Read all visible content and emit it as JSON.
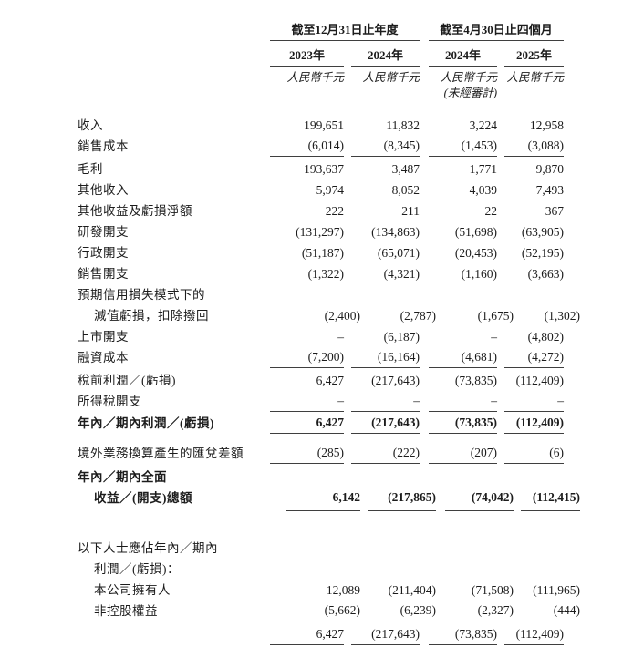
{
  "page": {
    "background": "#ffffff",
    "text_color": "#1c1c1c",
    "rule_color": "#3f3f3f"
  },
  "header": {
    "group1": {
      "title": "截至12月31日止年度",
      "columns": [
        "2023年",
        "2024年"
      ]
    },
    "group2": {
      "title": "截至4月30日止四個月",
      "columns": [
        "2024年",
        "2025年"
      ]
    },
    "unit_label": "人民幣千元",
    "unaudited_note": "(未經審計)"
  },
  "rows": [
    {
      "name": "revenue",
      "label": "收入",
      "indent": 0,
      "bold": false,
      "rule": "none",
      "gap": 0,
      "values": [
        "199,651",
        "11,832",
        "3,224",
        "12,958"
      ]
    },
    {
      "name": "cost-of-sales",
      "label": "銷售成本",
      "indent": 0,
      "bold": false,
      "rule": "single",
      "gap": 0,
      "values": [
        "(6,014)",
        "(8,345)",
        "(1,453)",
        "(3,088)"
      ]
    },
    {
      "name": "gross-profit",
      "label": "毛利",
      "indent": 0,
      "bold": false,
      "rule": "none",
      "gap": 2,
      "values": [
        "193,637",
        "3,487",
        "1,771",
        "9,870"
      ]
    },
    {
      "name": "other-income",
      "label": "其他收入",
      "indent": 0,
      "bold": false,
      "rule": "none",
      "gap": 0,
      "values": [
        "5,974",
        "8,052",
        "4,039",
        "7,493"
      ]
    },
    {
      "name": "other-gains-and-losses-net",
      "label": "其他收益及虧損淨額",
      "indent": 0,
      "bold": false,
      "rule": "none",
      "gap": 0,
      "values": [
        "222",
        "211",
        "22",
        "367"
      ]
    },
    {
      "name": "rd-expenses",
      "label": "研發開支",
      "indent": 0,
      "bold": false,
      "rule": "none",
      "gap": 0,
      "values": [
        "(131,297)",
        "(134,863)",
        "(51,698)",
        "(63,905)"
      ]
    },
    {
      "name": "admin-expenses",
      "label": "行政開支",
      "indent": 0,
      "bold": false,
      "rule": "none",
      "gap": 0,
      "values": [
        "(51,187)",
        "(65,071)",
        "(20,453)",
        "(52,195)"
      ]
    },
    {
      "name": "selling-expenses",
      "label": "銷售開支",
      "indent": 0,
      "bold": false,
      "rule": "none",
      "gap": 0,
      "values": [
        "(1,322)",
        "(4,321)",
        "(1,160)",
        "(3,663)"
      ]
    },
    {
      "name": "ecl-heading",
      "label": "預期信用損失模式下的",
      "indent": 0,
      "bold": false,
      "rule": "none",
      "gap": 0,
      "values": [
        "",
        "",
        "",
        ""
      ]
    },
    {
      "name": "impairment-losses-net-of-reversal",
      "label": "減值虧損，扣除撥回",
      "indent": 1,
      "bold": false,
      "rule": "none",
      "gap": 0,
      "values": [
        "(2,400)",
        "(2,787)",
        "(1,675)",
        "(1,302)"
      ]
    },
    {
      "name": "listing-expenses",
      "label": "上市開支",
      "indent": 0,
      "bold": false,
      "rule": "none",
      "gap": 0,
      "values": [
        "–",
        "(6,187)",
        "–",
        "(4,802)"
      ]
    },
    {
      "name": "finance-costs",
      "label": "融資成本",
      "indent": 0,
      "bold": false,
      "rule": "single",
      "gap": 0,
      "values": [
        "(7,200)",
        "(16,164)",
        "(4,681)",
        "(4,272)"
      ]
    },
    {
      "name": "profit-before-tax",
      "label": "稅前利潤／(虧損)",
      "indent": 0,
      "bold": false,
      "rule": "none",
      "gap": 2,
      "values": [
        "6,427",
        "(217,643)",
        "(73,835)",
        "(112,409)"
      ]
    },
    {
      "name": "income-tax-expense",
      "label": "所得稅開支",
      "indent": 0,
      "bold": false,
      "rule": "single",
      "gap": 0,
      "values": [
        "–",
        "–",
        "–",
        "–"
      ]
    },
    {
      "name": "profit-for-the-year",
      "label": "年內／期內利潤／(虧損)",
      "indent": 0,
      "bold": true,
      "rule": "double",
      "gap": 1,
      "values": [
        "6,427",
        "(217,643)",
        "(73,835)",
        "(112,409)"
      ]
    },
    {
      "name": "exchange-differences",
      "label": "境外業務換算產生的匯兌差額",
      "indent": 0,
      "bold": false,
      "rule": "single",
      "gap": 10,
      "values": [
        "(285)",
        "(222)",
        "(207)",
        "(6)"
      ]
    },
    {
      "name": "total-comprehensive-heading",
      "label": "年內／期內全面",
      "indent": 0,
      "bold": true,
      "rule": "none",
      "gap": 3,
      "values": [
        "",
        "",
        "",
        ""
      ]
    },
    {
      "name": "total-comprehensive-income",
      "label": "收益／(開支)總額",
      "indent": 1,
      "bold": true,
      "rule": "double",
      "gap": 0,
      "values": [
        "6,142",
        "(217,865)",
        "(74,042)",
        "(112,415)"
      ]
    },
    {
      "name": "attributable-heading-line1",
      "label": "以下人士應佔年內／期內",
      "indent": 0,
      "bold": false,
      "rule": "none",
      "gap": 32,
      "values": [
        "",
        "",
        "",
        ""
      ]
    },
    {
      "name": "attributable-heading-line2",
      "label": "利潤／(虧損)：",
      "indent": 1,
      "bold": false,
      "rule": "none",
      "gap": 0,
      "values": [
        "",
        "",
        "",
        ""
      ]
    },
    {
      "name": "owners-of-the-company",
      "label": "本公司擁有人",
      "indent": 1,
      "bold": false,
      "rule": "none",
      "gap": 0,
      "values": [
        "12,089",
        "(211,404)",
        "(71,508)",
        "(111,965)"
      ]
    },
    {
      "name": "non-controlling-interests",
      "label": "非控股權益",
      "indent": 1,
      "bold": false,
      "rule": "single",
      "gap": 0,
      "values": [
        "(5,662)",
        "(6,239)",
        "(2,327)",
        "(444)"
      ]
    },
    {
      "name": "attributable-total",
      "label": "",
      "indent": 0,
      "bold": false,
      "rule": "double",
      "gap": 3,
      "values": [
        "6,427",
        "(217,643)",
        "(73,835)",
        "(112,409)"
      ]
    }
  ]
}
